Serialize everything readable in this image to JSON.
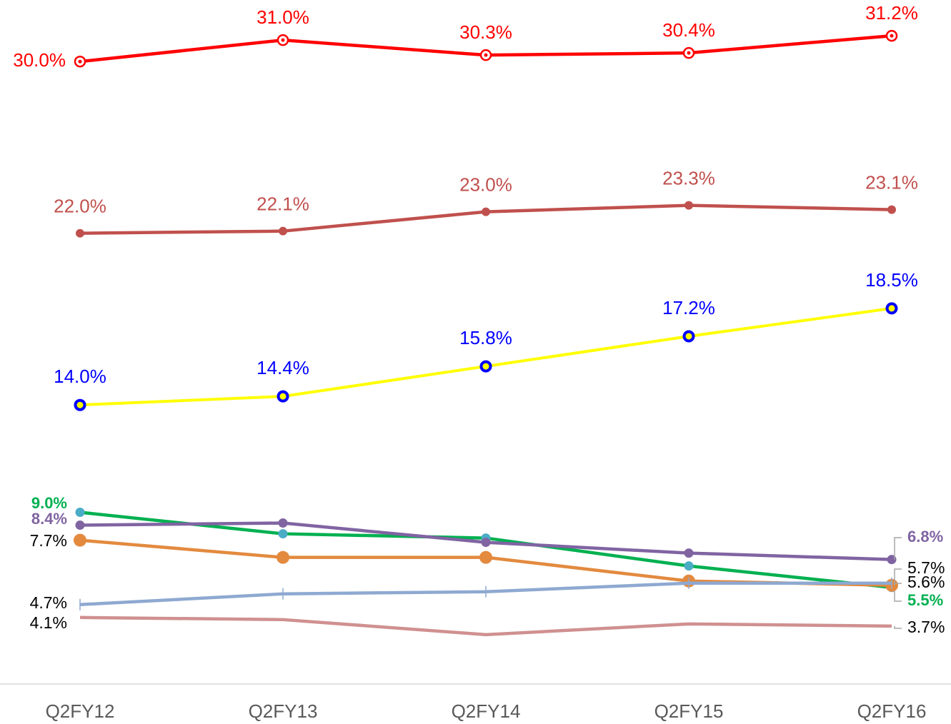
{
  "chart_data": {
    "type": "line",
    "categories": [
      "Q2FY12",
      "Q2FY13",
      "Q2FY14",
      "Q2FY15",
      "Q2FY16"
    ],
    "ylim": [
      1,
      33
    ],
    "series": [
      {
        "color": "#ff0000",
        "marker_color": "#ff0000",
        "values": [
          30.0,
          31.0,
          30.3,
          30.4,
          31.2
        ],
        "value_labels": [
          "30.0%",
          "31.0%",
          "30.3%",
          "30.4%",
          "31.2%"
        ]
      },
      {
        "color": "#c0504d",
        "marker_color": "#c0504d",
        "values": [
          22.0,
          22.1,
          23.0,
          23.3,
          23.1
        ],
        "value_labels": [
          "22.0%",
          "22.1%",
          "23.0%",
          "23.3%",
          "23.1%"
        ]
      },
      {
        "color": "#ffff00",
        "marker_color": "#0000ff",
        "values": [
          14.0,
          14.4,
          15.8,
          17.2,
          18.5
        ],
        "value_labels": [
          "14.0%",
          "14.4%",
          "15.8%",
          "17.2%",
          "18.5%"
        ]
      },
      {
        "color": "#00b050",
        "marker_color": "#4bacc6",
        "values": [
          9.0,
          8.0,
          7.8,
          6.5,
          5.5
        ],
        "value_labels": [
          "9.0%",
          null,
          null,
          null,
          "5.5%"
        ]
      },
      {
        "color": "#8064a2",
        "marker_color": "#8064a2",
        "values": [
          8.4,
          8.5,
          7.6,
          7.1,
          6.8
        ],
        "value_labels": [
          "8.4%",
          null,
          null,
          null,
          "6.8%"
        ]
      },
      {
        "color": "#e38a3f",
        "marker_color": "#e38a3f",
        "values": [
          7.7,
          6.9,
          6.9,
          5.8,
          5.6
        ],
        "value_labels": [
          "7.7%",
          null,
          null,
          null,
          "5.6%"
        ]
      },
      {
        "color": "#8ea9d1",
        "marker_color": "#8ea9d1",
        "values": [
          4.7,
          5.2,
          5.3,
          5.7,
          5.7
        ],
        "value_labels": [
          "4.7%",
          null,
          null,
          null,
          "5.7%"
        ]
      },
      {
        "color": "#d09090",
        "marker_color": "#d09090",
        "values": [
          4.1,
          4.0,
          3.3,
          3.8,
          3.7
        ],
        "value_labels": [
          "4.1%",
          null,
          null,
          null,
          "3.7%"
        ]
      }
    ]
  }
}
